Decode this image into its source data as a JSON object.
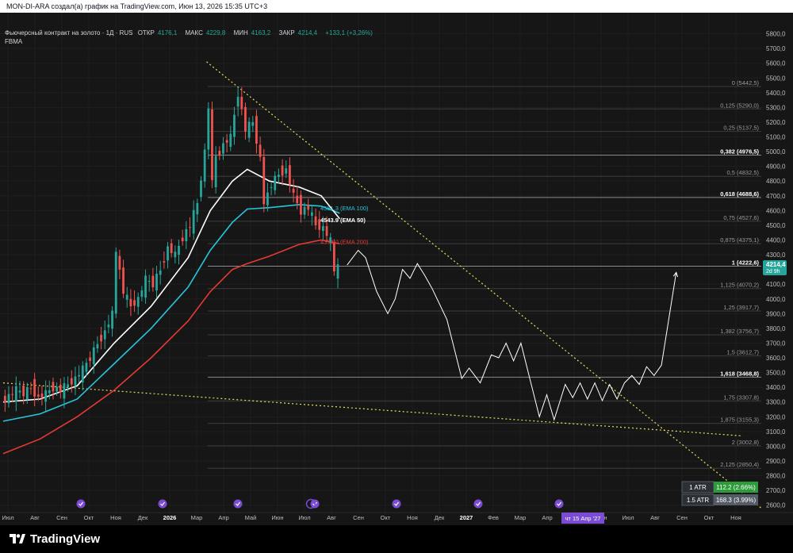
{
  "header": {
    "title": "MON-DI-ARA создал(а) график на TradingView.com, Июн 13, 2026 15:35 UTC+3"
  },
  "legend": {
    "symbol": "Фьючерсный контракт на золото · 1Д · RUS",
    "open_label": "ОТКР",
    "open_value": "4176,1",
    "high_label": "МАКС",
    "high_value": "4229,8",
    "low_label": "МИН",
    "low_value": "4163,2",
    "close_label": "ЗАКР",
    "close_value": "4214,4",
    "change": "+133,1 (+3,26%)",
    "indicator": "FBMA"
  },
  "brand": {
    "name": "TradingView"
  },
  "colors": {
    "background": "#161616",
    "up": "#26a69a",
    "down": "#ef5350",
    "ema50": "#ffffff",
    "ema100": "#26c6da",
    "ema200": "#e53935",
    "trendline": "#e6e05a",
    "projection": "#ffffff",
    "price_tag": "#26a69a",
    "atr1": "#2e9b3a",
    "atr15": "#555b66",
    "date_badge": "#7b4bd3"
  },
  "chart_data": {
    "type": "line",
    "title": "",
    "xlabel": "",
    "ylabel": "",
    "ylim": [
      2550,
      5900
    ],
    "y_ticks": [
      "5800,0",
      "5700,0",
      "5600,0",
      "5500,0",
      "5400,0",
      "5300,0",
      "5200,0",
      "5100,0",
      "5000,0",
      "4900,0",
      "4800,0",
      "4700,0",
      "4600,0",
      "4500,0",
      "4400,0",
      "4300,0",
      "4200,0",
      "4100,0",
      "4000,0",
      "3900,0",
      "3800,0",
      "3700,0",
      "3600,0",
      "3500,0",
      "3400,0",
      "3300,0",
      "3200,0",
      "3100,0",
      "3000,0",
      "2900,0",
      "2800,0",
      "2700,0",
      "2600,0"
    ],
    "x_ticks": [
      "Июл",
      "Авг",
      "Сен",
      "Окт",
      "Ноя",
      "Дек",
      "2026",
      "Мар",
      "Апр",
      "Май",
      "Июн",
      "Июл",
      "Авг",
      "Сен",
      "Окт",
      "Ноя",
      "Дек",
      "2027",
      "Фев",
      "Мар",
      "Апр",
      "Май",
      "Июн",
      "Июл",
      "Авг",
      "Сен",
      "Окт",
      "Ноя"
    ],
    "date_badge": "чт 15 Апр '27",
    "last_price": "4214,4",
    "last_price_sub": "2d 9h",
    "fib_levels": [
      {
        "level": "0",
        "price": 5442.5,
        "label": "0 (5442,5)",
        "bold": false
      },
      {
        "level": "0.125",
        "price": 5290.0,
        "label": "0,125 (5290,0)",
        "bold": false
      },
      {
        "level": "0.25",
        "price": 5137.5,
        "label": "0,25 (5137,5)",
        "bold": false
      },
      {
        "level": "0.382",
        "price": 4976.5,
        "label": "0,382 (4976,5)",
        "bold": true
      },
      {
        "level": "0.5",
        "price": 4832.5,
        "label": "0,5 (4832,5)",
        "bold": false
      },
      {
        "level": "0.618",
        "price": 4688.6,
        "label": "0,618 (4688,6)",
        "bold": true
      },
      {
        "level": "0.75",
        "price": 4527.6,
        "label": "0,75 (4527,6)",
        "bold": false
      },
      {
        "level": "0.875",
        "price": 4375.1,
        "label": "0,875 (4375,1)",
        "bold": false
      },
      {
        "level": "1",
        "price": 4222.6,
        "label": "1 (4222,6)",
        "bold": true
      },
      {
        "level": "1.125",
        "price": 4070.2,
        "label": "1,125 (4070,2)",
        "bold": false
      },
      {
        "level": "1.25",
        "price": 3917.7,
        "label": "1,25 (3917,7)",
        "bold": false
      },
      {
        "level": "1.382",
        "price": 3756.7,
        "label": "1,382 (3756,7)",
        "bold": false
      },
      {
        "level": "1.5",
        "price": 3612.7,
        "label": "1,5 (3612,7)",
        "bold": false
      },
      {
        "level": "1.618",
        "price": 3468.8,
        "label": "1,618 (3468,8)",
        "bold": true
      },
      {
        "level": "1.75",
        "price": 3307.8,
        "label": "1,75 (3307,8)",
        "bold": false
      },
      {
        "level": "1.875",
        "price": 3155.3,
        "label": "1,875 (3155,3)",
        "bold": false
      },
      {
        "level": "2",
        "price": 3002.8,
        "label": "2 (3002,8)",
        "bold": false
      },
      {
        "level": "2.125",
        "price": 2850.4,
        "label": "2,125 (2850,4)",
        "bold": false
      }
    ],
    "ema_labels": [
      {
        "text": "4581.3 (EMA 100)",
        "value": 4581.3
      },
      {
        "text": "4543.9 (EMA 50)",
        "value": 4543.9
      },
      {
        "text": "4374.0 (EMA 200)",
        "value": 4374.0
      }
    ],
    "atr": [
      {
        "label": "1 ATR",
        "value": "112.2 (2.66%)"
      },
      {
        "label": "1.5 ATR",
        "value": "168.3 (3.99%)"
      }
    ],
    "price_series": [
      {
        "x": 0,
        "y": 3300
      },
      {
        "x": 2,
        "y": 3340
      },
      {
        "x": 4,
        "y": 3380
      },
      {
        "x": 6,
        "y": 3360
      },
      {
        "x": 8,
        "y": 3400
      },
      {
        "x": 10,
        "y": 3330
      },
      {
        "x": 12,
        "y": 3360
      },
      {
        "x": 14,
        "y": 3400
      },
      {
        "x": 16,
        "y": 3380
      },
      {
        "x": 18,
        "y": 3420
      },
      {
        "x": 20,
        "y": 3460
      },
      {
        "x": 22,
        "y": 3520
      },
      {
        "x": 24,
        "y": 3600
      },
      {
        "x": 26,
        "y": 3700
      },
      {
        "x": 28,
        "y": 3780
      },
      {
        "x": 30,
        "y": 3900
      },
      {
        "x": 31,
        "y": 4320
      },
      {
        "x": 33,
        "y": 4050
      },
      {
        "x": 35,
        "y": 3950
      },
      {
        "x": 37,
        "y": 4000
      },
      {
        "x": 39,
        "y": 4130
      },
      {
        "x": 41,
        "y": 4100
      },
      {
        "x": 43,
        "y": 4200
      },
      {
        "x": 45,
        "y": 4350
      },
      {
        "x": 47,
        "y": 4300
      },
      {
        "x": 49,
        "y": 4420
      },
      {
        "x": 51,
        "y": 4500
      },
      {
        "x": 53,
        "y": 4650
      },
      {
        "x": 55,
        "y": 5000
      },
      {
        "x": 56,
        "y": 5300
      },
      {
        "x": 57,
        "y": 4800
      },
      {
        "x": 58,
        "y": 4950
      },
      {
        "x": 60,
        "y": 5050
      },
      {
        "x": 62,
        "y": 5100
      },
      {
        "x": 64,
        "y": 5400
      },
      {
        "x": 66,
        "y": 5150
      },
      {
        "x": 68,
        "y": 5200
      },
      {
        "x": 70,
        "y": 4950
      },
      {
        "x": 71,
        "y": 4650
      },
      {
        "x": 73,
        "y": 4780
      },
      {
        "x": 75,
        "y": 4850
      },
      {
        "x": 77,
        "y": 4880
      },
      {
        "x": 79,
        "y": 4700
      },
      {
        "x": 81,
        "y": 4600
      },
      {
        "x": 83,
        "y": 4620
      },
      {
        "x": 85,
        "y": 4500
      },
      {
        "x": 87,
        "y": 4480
      },
      {
        "x": 89,
        "y": 4390
      },
      {
        "x": 90,
        "y": 4180
      },
      {
        "x": 91,
        "y": 4214
      }
    ],
    "ema50_series": [
      {
        "x": 0,
        "y": 3300
      },
      {
        "x": 10,
        "y": 3320
      },
      {
        "x": 20,
        "y": 3410
      },
      {
        "x": 30,
        "y": 3700
      },
      {
        "x": 40,
        "y": 3950
      },
      {
        "x": 50,
        "y": 4280
      },
      {
        "x": 56,
        "y": 4600
      },
      {
        "x": 62,
        "y": 4800
      },
      {
        "x": 66,
        "y": 4880
      },
      {
        "x": 72,
        "y": 4800
      },
      {
        "x": 80,
        "y": 4760
      },
      {
        "x": 86,
        "y": 4700
      },
      {
        "x": 91,
        "y": 4543.9
      }
    ],
    "ema100_series": [
      {
        "x": 0,
        "y": 3170
      },
      {
        "x": 10,
        "y": 3220
      },
      {
        "x": 20,
        "y": 3320
      },
      {
        "x": 30,
        "y": 3560
      },
      {
        "x": 40,
        "y": 3800
      },
      {
        "x": 50,
        "y": 4080
      },
      {
        "x": 56,
        "y": 4330
      },
      {
        "x": 62,
        "y": 4520
      },
      {
        "x": 66,
        "y": 4610
      },
      {
        "x": 72,
        "y": 4620
      },
      {
        "x": 80,
        "y": 4640
      },
      {
        "x": 86,
        "y": 4630
      },
      {
        "x": 91,
        "y": 4581.3
      }
    ],
    "ema200_series": [
      {
        "x": 0,
        "y": 2950
      },
      {
        "x": 10,
        "y": 3050
      },
      {
        "x": 20,
        "y": 3200
      },
      {
        "x": 30,
        "y": 3380
      },
      {
        "x": 40,
        "y": 3600
      },
      {
        "x": 50,
        "y": 3850
      },
      {
        "x": 56,
        "y": 4050
      },
      {
        "x": 62,
        "y": 4200
      },
      {
        "x": 66,
        "y": 4240
      },
      {
        "x": 72,
        "y": 4290
      },
      {
        "x": 80,
        "y": 4370
      },
      {
        "x": 86,
        "y": 4400
      },
      {
        "x": 91,
        "y": 4374.0
      }
    ],
    "projection_series": [
      {
        "x": 93,
        "y": 4230
      },
      {
        "x": 96,
        "y": 4330
      },
      {
        "x": 98,
        "y": 4280
      },
      {
        "x": 101,
        "y": 4050
      },
      {
        "x": 104,
        "y": 3900
      },
      {
        "x": 106,
        "y": 4000
      },
      {
        "x": 108,
        "y": 4200
      },
      {
        "x": 110,
        "y": 4140
      },
      {
        "x": 112,
        "y": 4240
      },
      {
        "x": 114,
        "y": 4160
      },
      {
        "x": 116,
        "y": 4070
      },
      {
        "x": 120,
        "y": 3860
      },
      {
        "x": 124,
        "y": 3460
      },
      {
        "x": 126,
        "y": 3530
      },
      {
        "x": 129,
        "y": 3430
      },
      {
        "x": 132,
        "y": 3620
      },
      {
        "x": 134,
        "y": 3600
      },
      {
        "x": 136,
        "y": 3700
      },
      {
        "x": 138,
        "y": 3580
      },
      {
        "x": 140,
        "y": 3700
      },
      {
        "x": 142,
        "y": 3500
      },
      {
        "x": 145,
        "y": 3200
      },
      {
        "x": 147,
        "y": 3350
      },
      {
        "x": 149,
        "y": 3180
      },
      {
        "x": 152,
        "y": 3420
      },
      {
        "x": 154,
        "y": 3330
      },
      {
        "x": 156,
        "y": 3430
      },
      {
        "x": 158,
        "y": 3320
      },
      {
        "x": 160,
        "y": 3430
      },
      {
        "x": 162,
        "y": 3310
      },
      {
        "x": 164,
        "y": 3420
      },
      {
        "x": 166,
        "y": 3320
      },
      {
        "x": 168,
        "y": 3430
      },
      {
        "x": 170,
        "y": 3480
      },
      {
        "x": 172,
        "y": 3420
      },
      {
        "x": 174,
        "y": 3540
      },
      {
        "x": 176,
        "y": 3480
      },
      {
        "x": 178,
        "y": 3550
      },
      {
        "x": 182,
        "y": 4180
      }
    ],
    "trendlines": [
      {
        "x1": 55,
        "y1": 5610,
        "x2": 205,
        "y2": 2580
      },
      {
        "x1": 0,
        "y1": 3430,
        "x2": 200,
        "y2": 3070
      }
    ],
    "event_markers_x": [
      22,
      45,
      68,
      90,
      112,
      135,
      158
    ]
  }
}
